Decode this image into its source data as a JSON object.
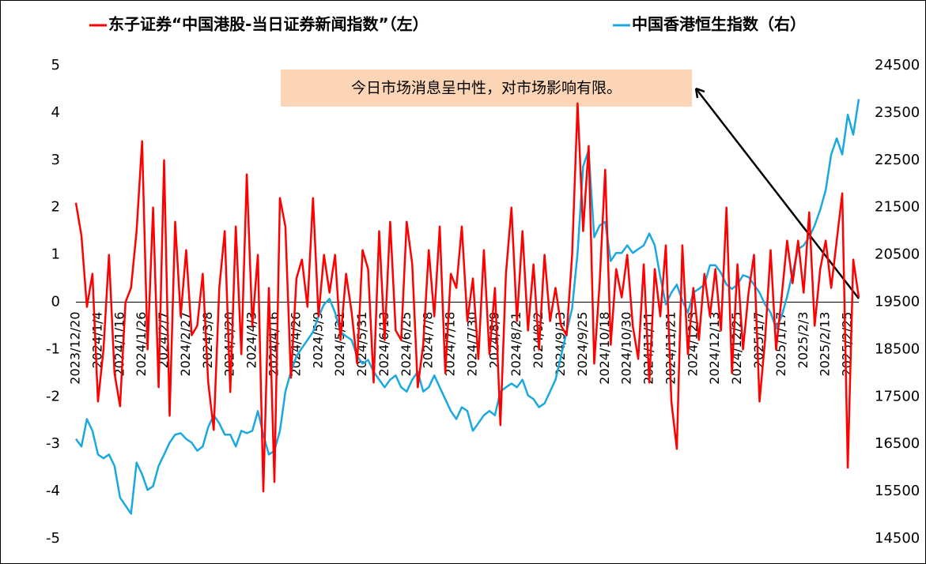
{
  "chart_data": {
    "type": "line",
    "annotation": "今日市场消息呈中性，对市场影响有限。",
    "categories": [
      "2023/12/20",
      null,
      null,
      null,
      "2024/1/4",
      null,
      null,
      null,
      "2024/1/16",
      null,
      null,
      null,
      "2024/1/26",
      null,
      null,
      null,
      "2024/2/7",
      null,
      null,
      null,
      "2024/2/27",
      null,
      null,
      null,
      "2024/3/8",
      null,
      null,
      null,
      "2024/3/20",
      null,
      null,
      null,
      "2024/4/3",
      null,
      null,
      null,
      "2024/4/16",
      null,
      null,
      null,
      "2024/4/26",
      null,
      null,
      null,
      "2024/5/9",
      null,
      null,
      null,
      "2024/5/21",
      null,
      null,
      null,
      "2024/5/31",
      null,
      null,
      null,
      "2024/6/13",
      null,
      null,
      null,
      "2024/6/25",
      null,
      null,
      null,
      "2024/7/8",
      null,
      null,
      null,
      "2024/7/18",
      null,
      null,
      null,
      "2024/7/30",
      null,
      null,
      null,
      "2024/8/9",
      null,
      null,
      null,
      "2024/8/21",
      null,
      null,
      null,
      "2024/9/2",
      null,
      null,
      null,
      "2024/9/13",
      null,
      null,
      null,
      "2024/9/25",
      null,
      null,
      null,
      "2024/10/18",
      null,
      null,
      null,
      "2024/10/30",
      null,
      null,
      null,
      "2024/11/11",
      null,
      null,
      null,
      "2024/11/21",
      null,
      null,
      null,
      "2024/12/3",
      null,
      null,
      null,
      "2024/12/13",
      null,
      null,
      null,
      "2024/12/25",
      null,
      null,
      null,
      "2025/1/7",
      null,
      null,
      null,
      "2025/1/17",
      null,
      null,
      null,
      "2025/2/3",
      null,
      null,
      null,
      "2025/2/13",
      null,
      null,
      null,
      "2025/2/25",
      null,
      null
    ],
    "series": [
      {
        "name": "东子证券“中国港股-当日证券新闻指数”（左）",
        "color": "#ff0000",
        "values": [
          2.1,
          1.4,
          -0.1,
          0.6,
          -2.1,
          -1.0,
          1.0,
          -1.5,
          -2.2,
          0.0,
          0.3,
          1.5,
          3.4,
          -1.0,
          2.0,
          -1.8,
          3.0,
          -2.4,
          1.7,
          -0.3,
          1.1,
          -0.7,
          -0.5,
          0.6,
          -1.7,
          -2.7,
          0.3,
          1.5,
          -1.9,
          1.6,
          -1.1,
          2.7,
          -0.5,
          1.0,
          -4.0,
          0.3,
          -3.8,
          2.2,
          1.6,
          -1.6,
          0.5,
          0.9,
          -0.1,
          2.2,
          -0.3,
          1.0,
          0.2,
          1.0,
          -0.8,
          0.6,
          -0.2,
          -1.3,
          1.1,
          0.7,
          -1.7,
          1.5,
          -0.8,
          1.7,
          -0.6,
          -0.8,
          1.7,
          0.8,
          -1.8,
          -0.9,
          1.1,
          -0.3,
          1.6,
          -1.5,
          0.6,
          0.3,
          1.6,
          -0.4,
          0.5,
          -1.2,
          1.1,
          -1.1,
          0.3,
          -2.6,
          0.6,
          2.0,
          -0.4,
          1.5,
          -0.6,
          0.8,
          -1.0,
          1.0,
          -0.4,
          0.3,
          -0.5,
          -0.7,
          1.0,
          4.2,
          1.5,
          3.3,
          -1.3,
          0.4,
          2.8,
          -0.9,
          0.7,
          0.1,
          1.0,
          -0.5,
          -1.2,
          0.8,
          -1.7,
          0.7,
          -0.3,
          1.2,
          -2.1,
          -3.1,
          1.2,
          -1.1,
          0.3,
          -0.8,
          0.6,
          -0.3,
          0.7,
          -0.6,
          2.0,
          -1.5,
          0.8,
          -1.0,
          0.2,
          1.0,
          -2.1,
          -0.8,
          1.1,
          -1.0,
          0.1,
          1.3,
          0.4,
          1.3,
          0.2,
          1.9,
          -0.5,
          0.7,
          1.3,
          0.3,
          1.3,
          2.3,
          -3.5,
          0.9,
          0.1
        ]
      },
      {
        "name": "中国香港恒生指数（右）",
        "color": "#1aa8e0",
        "axis": "y2",
        "values": [
          16610,
          16450,
          17030,
          16780,
          16280,
          16200,
          16280,
          16040,
          15370,
          15200,
          15030,
          16110,
          15860,
          15530,
          15610,
          16040,
          16280,
          16530,
          16700,
          16730,
          16610,
          16530,
          16360,
          16450,
          16860,
          17110,
          16940,
          16700,
          16700,
          16450,
          16780,
          16730,
          16780,
          17200,
          16700,
          16280,
          16360,
          16780,
          17610,
          18030,
          18360,
          18530,
          18700,
          18870,
          19200,
          19450,
          19570,
          19280,
          18870,
          18780,
          18700,
          18360,
          18200,
          18280,
          18030,
          17860,
          17700,
          17860,
          17950,
          17700,
          17610,
          17860,
          18030,
          17610,
          17700,
          17950,
          17700,
          17450,
          17200,
          17030,
          17280,
          17200,
          16780,
          16940,
          17110,
          17200,
          17110,
          17610,
          17700,
          17780,
          17700,
          17860,
          17530,
          17450,
          17280,
          17360,
          17610,
          17860,
          18360,
          18870,
          19370,
          20540,
          22370,
          22710,
          20870,
          21120,
          21200,
          20370,
          20540,
          20540,
          20700,
          20540,
          20620,
          20700,
          20950,
          20700,
          20030,
          19450,
          19700,
          19870,
          19530,
          19280,
          19700,
          19780,
          19870,
          20280,
          20280,
          20120,
          19870,
          19780,
          19870,
          20070,
          20030,
          19870,
          19700,
          19450,
          19280,
          18950,
          19200,
          19620,
          20120,
          20620,
          20700,
          20870,
          21120,
          21450,
          21870,
          22620,
          22960,
          22620,
          23460,
          23040,
          23790
        ]
      }
    ],
    "ylim": [
      -5,
      5
    ],
    "yticks": [
      -5,
      -4,
      -3,
      -2,
      -1,
      0,
      1,
      2,
      3,
      4,
      5
    ],
    "y2lim": [
      14500,
      24500
    ],
    "y2ticks": [
      14500,
      15500,
      16500,
      17500,
      18500,
      19500,
      20500,
      21500,
      22500,
      23500,
      24500
    ]
  }
}
